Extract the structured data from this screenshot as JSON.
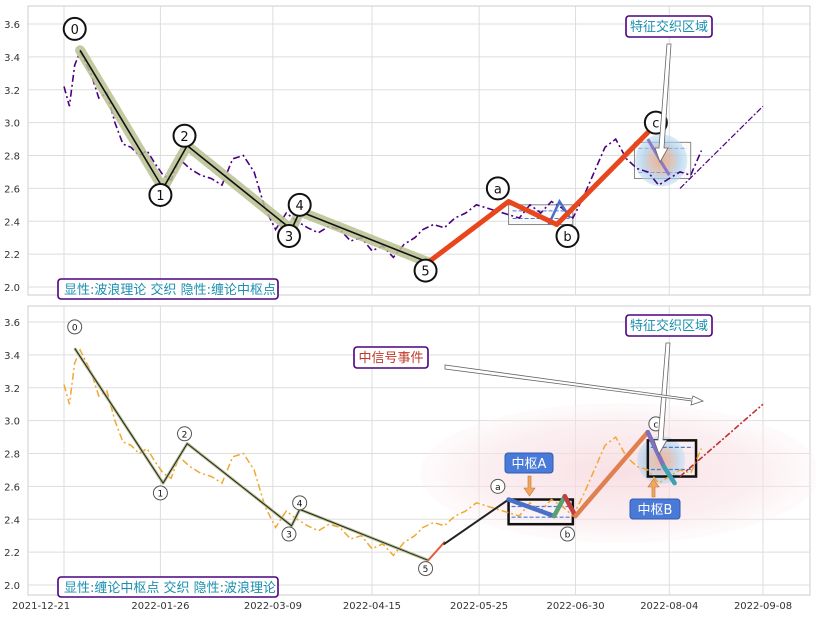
{
  "chart_data": [
    {
      "type": "line",
      "panel": "top",
      "ylim": [
        1.95,
        3.7
      ],
      "y_ticks": [
        2.0,
        2.2,
        2.4,
        2.6,
        2.8,
        3.0,
        3.2,
        3.4,
        3.6
      ],
      "grid": true,
      "price_series": {
        "style": "dash-dot",
        "color": "#4b0082",
        "x": [
          "2021-12-21",
          "2021-12-23",
          "2021-12-25",
          "2021-12-27",
          "2021-12-31",
          "2022-01-03",
          "2022-01-06",
          "2022-01-09",
          "2022-01-12",
          "2022-01-15",
          "2022-01-18",
          "2022-01-21",
          "2022-01-24",
          "2022-01-27",
          "2022-01-30",
          "2022-02-02",
          "2022-02-06",
          "2022-02-10",
          "2022-02-14",
          "2022-02-18",
          "2022-02-22",
          "2022-02-26",
          "2022-03-02",
          "2022-03-06",
          "2022-03-10",
          "2022-03-14",
          "2022-03-18",
          "2022-03-22",
          "2022-03-26",
          "2022-03-30",
          "2022-04-03",
          "2022-04-07",
          "2022-04-11",
          "2022-04-15",
          "2022-04-19",
          "2022-04-23",
          "2022-04-27",
          "2022-05-01",
          "2022-05-04",
          "2022-05-08",
          "2022-05-12",
          "2022-05-16",
          "2022-05-20",
          "2022-05-24",
          "2022-05-28",
          "2022-06-01",
          "2022-06-05",
          "2022-06-09",
          "2022-06-13",
          "2022-06-17",
          "2022-06-21",
          "2022-06-25",
          "2022-06-29",
          "2022-07-03",
          "2022-07-07",
          "2022-07-11",
          "2022-07-15",
          "2022-07-19",
          "2022-07-23",
          "2022-07-27",
          "2022-07-31",
          "2022-08-04",
          "2022-08-08",
          "2022-08-12",
          "2022-08-16"
        ],
        "y": [
          3.22,
          3.1,
          3.35,
          3.43,
          3.3,
          3.15,
          3.18,
          3.0,
          2.87,
          2.85,
          2.8,
          2.83,
          2.75,
          2.68,
          2.65,
          2.78,
          2.72,
          2.68,
          2.66,
          2.62,
          2.78,
          2.8,
          2.7,
          2.48,
          2.35,
          2.45,
          2.4,
          2.36,
          2.33,
          2.37,
          2.35,
          2.28,
          2.3,
          2.22,
          2.25,
          2.18,
          2.26,
          2.3,
          2.35,
          2.38,
          2.36,
          2.42,
          2.45,
          2.5,
          2.48,
          2.46,
          2.44,
          2.42,
          2.5,
          2.45,
          2.52,
          2.48,
          2.42,
          2.55,
          2.7,
          2.85,
          2.9,
          2.78,
          2.72,
          2.7,
          2.62,
          2.66,
          2.7,
          2.68,
          2.83
        ]
      },
      "wave_path": {
        "x": [
          "2021-12-27",
          "2022-01-27",
          "2022-02-05",
          "2022-03-16",
          "2022-03-19",
          "2022-05-06"
        ],
        "y": [
          3.44,
          2.6,
          2.86,
          2.35,
          2.46,
          2.15
        ]
      },
      "orange_path": {
        "x": [
          "2022-05-06",
          "2022-06-05",
          "2022-06-23",
          "2022-07-27"
        ],
        "y": [
          2.15,
          2.52,
          2.38,
          2.94
        ]
      },
      "projection": {
        "x": [
          "2022-08-08",
          "2022-09-08"
        ],
        "y": [
          2.6,
          3.1
        ]
      },
      "wave_labels": [
        {
          "label": "0",
          "x": "2021-12-25",
          "y": 3.57
        },
        {
          "label": "1",
          "x": "2022-01-26",
          "y": 2.56
        },
        {
          "label": "2",
          "x": "2022-02-04",
          "y": 2.92
        },
        {
          "label": "3",
          "x": "2022-03-15",
          "y": 2.31
        },
        {
          "label": "4",
          "x": "2022-03-19",
          "y": 2.5
        },
        {
          "label": "5",
          "x": "2022-05-05",
          "y": 2.1
        },
        {
          "label": "a",
          "x": "2022-06-01",
          "y": 2.6
        },
        {
          "label": "b",
          "x": "2022-06-27",
          "y": 2.31
        },
        {
          "label": "c",
          "x": "2022-07-30",
          "y": 3.0
        }
      ],
      "pivot_zones": [
        {
          "x": [
            "2022-06-05",
            "2022-06-29"
          ],
          "y": [
            2.38,
            2.5
          ]
        },
        {
          "x": [
            "2022-07-22",
            "2022-08-12"
          ],
          "y": [
            2.66,
            2.88
          ]
        }
      ],
      "annotations": [
        "特征交织区域"
      ],
      "caption": "显性:波浪理论 交织 隐性:缠论中枢点"
    },
    {
      "type": "line",
      "panel": "bottom",
      "ylim": [
        1.95,
        3.7
      ],
      "y_ticks": [
        2.0,
        2.2,
        2.4,
        2.6,
        2.8,
        3.0,
        3.2,
        3.4,
        3.6
      ],
      "x_ticks": [
        "2021-12-21",
        "2022-01-26",
        "2022-03-09",
        "2022-04-15",
        "2022-05-25",
        "2022-06-30",
        "2022-08-04",
        "2022-09-08"
      ],
      "grid": true,
      "price_series": {
        "style": "dash-dot",
        "color": "#f0a830"
      },
      "wave_path": {
        "x": [
          "2021-12-25",
          "2022-01-27",
          "2022-02-05",
          "2022-03-16",
          "2022-03-19",
          "2022-05-06"
        ],
        "y": [
          3.44,
          2.62,
          2.86,
          2.36,
          2.46,
          2.15
        ]
      },
      "segments": [
        {
          "color": "#e06040",
          "x": [
            "2022-05-06",
            "2022-05-12"
          ],
          "y": [
            2.15,
            2.26
          ]
        },
        {
          "color": "#222222",
          "x": [
            "2022-05-12",
            "2022-06-05"
          ],
          "y": [
            2.25,
            2.52
          ]
        },
        {
          "color": "#4a6fc8",
          "x": [
            "2022-06-05",
            "2022-06-22"
          ],
          "y": [
            2.52,
            2.42
          ]
        },
        {
          "color": "#5aa070",
          "x": [
            "2022-06-22",
            "2022-06-26"
          ],
          "y": [
            2.42,
            2.54
          ]
        },
        {
          "color": "#c04040",
          "x": [
            "2022-06-26",
            "2022-06-30"
          ],
          "y": [
            2.54,
            2.42
          ]
        },
        {
          "color": "#e08050",
          "x": [
            "2022-06-30",
            "2022-07-27"
          ],
          "y": [
            2.42,
            2.93
          ]
        },
        {
          "color": "#8070c0",
          "x": [
            "2022-07-27",
            "2022-08-02"
          ],
          "y": [
            2.93,
            2.72
          ]
        },
        {
          "color": "#40a0b0",
          "x": [
            "2022-08-02",
            "2022-08-06"
          ],
          "y": [
            2.72,
            2.62
          ]
        }
      ],
      "projection": {
        "x": [
          "2022-08-08",
          "2022-09-08"
        ],
        "y": [
          2.66,
          3.1
        ]
      },
      "wave_labels": [
        {
          "label": "0",
          "x": "2021-12-25",
          "y": 3.57
        },
        {
          "label": "1",
          "x": "2022-01-26",
          "y": 2.56
        },
        {
          "label": "2",
          "x": "2022-02-04",
          "y": 2.92
        },
        {
          "label": "3",
          "x": "2022-03-15",
          "y": 2.31
        },
        {
          "label": "4",
          "x": "2022-03-19",
          "y": 2.5
        },
        {
          "label": "5",
          "x": "2022-05-05",
          "y": 2.1
        },
        {
          "label": "a",
          "x": "2022-06-01",
          "y": 2.6
        },
        {
          "label": "b",
          "x": "2022-06-27",
          "y": 2.31
        },
        {
          "label": "c",
          "x": "2022-07-30",
          "y": 2.98
        }
      ],
      "pivot_zones": [
        {
          "label": "中枢A",
          "x": [
            "2022-06-05",
            "2022-06-29"
          ],
          "y": [
            2.37,
            2.52
          ]
        },
        {
          "label": "中枢B",
          "x": [
            "2022-07-27",
            "2022-08-14"
          ],
          "y": [
            2.66,
            2.88
          ]
        }
      ],
      "annotations": [
        "特征交织区域",
        "中信号事件"
      ],
      "caption": "显性:缠论中枢点 交织 隐性:波浪理论"
    }
  ]
}
